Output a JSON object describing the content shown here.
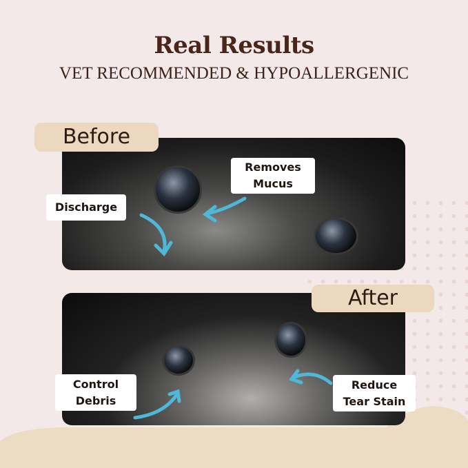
{
  "header": {
    "title": "Real Results",
    "subtitle": "VET RECOMMENDED & HYPOALLERGENIC"
  },
  "before": {
    "tag": "Before",
    "labels": [
      "Discharge",
      "Removes Mucus"
    ]
  },
  "after": {
    "tag": "After",
    "labels": [
      "Control Debris",
      "Reduce Tear Stain"
    ]
  },
  "colors": {
    "background": "#f3e9e8",
    "title": "#4a2519",
    "tag_bg": "#ecd8bf",
    "arrow": "#4fb8d8"
  },
  "icons": [
    "curved-arrow-icon"
  ]
}
